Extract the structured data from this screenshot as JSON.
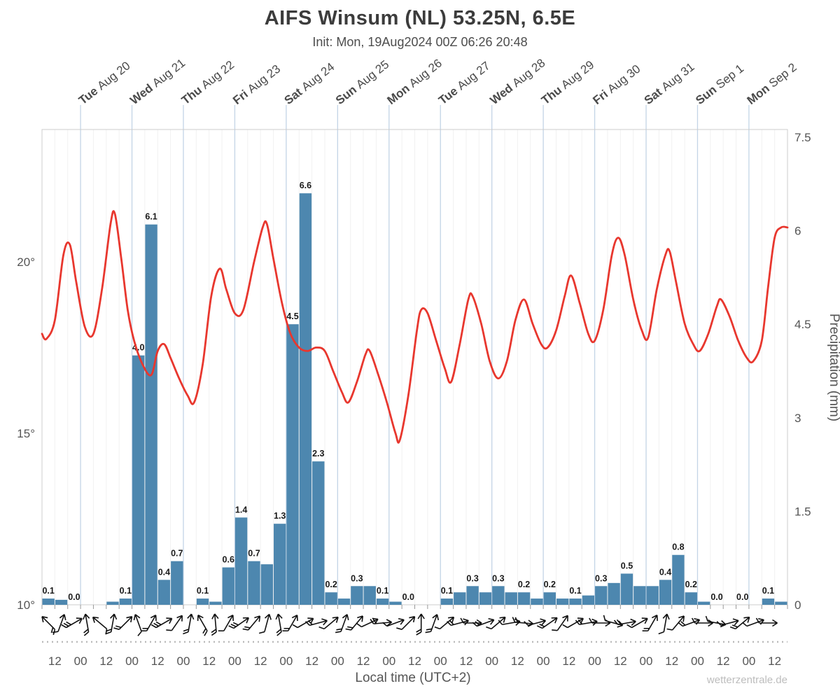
{
  "watermark": "wetterzentrale.de",
  "chart_data": {
    "type": "meteogram (line + bar + wind barbs)",
    "title": "AIFS Winsum (NL) 53.25N, 6.5E",
    "subtitle": "Init: Mon, 19Aug2024 00Z 06:26 20:48",
    "y_left": {
      "label": "Temperature",
      "unit": "°C",
      "ticks": [
        {
          "v": 20,
          "label": "20°"
        },
        {
          "v": 15,
          "label": "15°"
        },
        {
          "v": 10,
          "label": "10°"
        }
      ],
      "range": [
        10,
        23.9
      ]
    },
    "y_right": {
      "label": "Precipitation (mm)",
      "unit": "mm",
      "ticks": [
        "0",
        "1.5",
        "3",
        "4.5",
        "6",
        "7.5"
      ],
      "tick_values": [
        0,
        1.5,
        3,
        4.5,
        6,
        7.5
      ],
      "range": [
        0,
        7.5
      ]
    },
    "x": {
      "label": "Local time (UTC+2)",
      "start": "Mon Aug 19 06:00 local",
      "hours_total": 348,
      "day_marks": [
        {
          "t": 18,
          "day": "Tue",
          "date": "Aug 20"
        },
        {
          "t": 42,
          "day": "Wed",
          "date": "Aug 21"
        },
        {
          "t": 66,
          "day": "Thu",
          "date": "Aug 22"
        },
        {
          "t": 90,
          "day": "Fri",
          "date": "Aug 23"
        },
        {
          "t": 114,
          "day": "Sat",
          "date": "Aug 24"
        },
        {
          "t": 138,
          "day": "Sun",
          "date": "Aug 25"
        },
        {
          "t": 162,
          "day": "Mon",
          "date": "Aug 26"
        },
        {
          "t": 186,
          "day": "Tue",
          "date": "Aug 27"
        },
        {
          "t": 210,
          "day": "Wed",
          "date": "Aug 28"
        },
        {
          "t": 234,
          "day": "Thu",
          "date": "Aug 29"
        },
        {
          "t": 258,
          "day": "Fri",
          "date": "Aug 30"
        },
        {
          "t": 282,
          "day": "Sat",
          "date": "Aug 31"
        },
        {
          "t": 306,
          "day": "Sun",
          "date": "Sep 1"
        },
        {
          "t": 330,
          "day": "Mon",
          "date": "Sep 2"
        }
      ],
      "hour_ticks": [
        {
          "t": 6,
          "label": "12"
        },
        {
          "t": 18,
          "label": "00"
        },
        {
          "t": 30,
          "label": "12"
        },
        {
          "t": 42,
          "label": "00"
        },
        {
          "t": 54,
          "label": "12"
        },
        {
          "t": 66,
          "label": "00"
        },
        {
          "t": 78,
          "label": "12"
        },
        {
          "t": 90,
          "label": "00"
        },
        {
          "t": 102,
          "label": "12"
        },
        {
          "t": 114,
          "label": "00"
        },
        {
          "t": 126,
          "label": "12"
        },
        {
          "t": 138,
          "label": "00"
        },
        {
          "t": 150,
          "label": "12"
        },
        {
          "t": 162,
          "label": "00"
        },
        {
          "t": 174,
          "label": "12"
        },
        {
          "t": 186,
          "label": "00"
        },
        {
          "t": 198,
          "label": "12"
        },
        {
          "t": 210,
          "label": "00"
        },
        {
          "t": 222,
          "label": "12"
        },
        {
          "t": 234,
          "label": "00"
        },
        {
          "t": 246,
          "label": "12"
        },
        {
          "t": 258,
          "label": "00"
        },
        {
          "t": 270,
          "label": "12"
        },
        {
          "t": 282,
          "label": "00"
        },
        {
          "t": 294,
          "label": "12"
        },
        {
          "t": 306,
          "label": "00"
        },
        {
          "t": 318,
          "label": "12"
        },
        {
          "t": 330,
          "label": "00"
        },
        {
          "t": 342,
          "label": "12"
        }
      ]
    },
    "temperature": {
      "name": "2m temperature",
      "color": "#e8372e",
      "unit": "°C",
      "points": [
        [
          0,
          17.9
        ],
        [
          2,
          17.75
        ],
        [
          6,
          18.3
        ],
        [
          10,
          20.2
        ],
        [
          13,
          20.5
        ],
        [
          16,
          19.4
        ],
        [
          20,
          18.1
        ],
        [
          24,
          17.9
        ],
        [
          28,
          19.2
        ],
        [
          32,
          21.1
        ],
        [
          34,
          21.4
        ],
        [
          37,
          20.1
        ],
        [
          40,
          18.6
        ],
        [
          43,
          17.7
        ],
        [
          47,
          17.0
        ],
        [
          51,
          16.7
        ],
        [
          54,
          17.4
        ],
        [
          57,
          17.6
        ],
        [
          60,
          17.2
        ],
        [
          64,
          16.6
        ],
        [
          68,
          16.1
        ],
        [
          71,
          15.9
        ],
        [
          75,
          17.0
        ],
        [
          79,
          19.0
        ],
        [
          83,
          19.8
        ],
        [
          86,
          19.2
        ],
        [
          90,
          18.5
        ],
        [
          94,
          18.6
        ],
        [
          99,
          20.0
        ],
        [
          103,
          21.0
        ],
        [
          105,
          21.1
        ],
        [
          108,
          20.1
        ],
        [
          112,
          18.8
        ],
        [
          116,
          17.9
        ],
        [
          120,
          17.5
        ],
        [
          124,
          17.4
        ],
        [
          128,
          17.5
        ],
        [
          132,
          17.4
        ],
        [
          136,
          16.8
        ],
        [
          140,
          16.2
        ],
        [
          143,
          15.9
        ],
        [
          147,
          16.5
        ],
        [
          151,
          17.3
        ],
        [
          153,
          17.4
        ],
        [
          157,
          16.7
        ],
        [
          161,
          15.9
        ],
        [
          165,
          15.0
        ],
        [
          167,
          14.8
        ],
        [
          171,
          16.1
        ],
        [
          175,
          18.0
        ],
        [
          177,
          18.6
        ],
        [
          180,
          18.5
        ],
        [
          184,
          17.7
        ],
        [
          188,
          16.9
        ],
        [
          191,
          16.5
        ],
        [
          195,
          17.6
        ],
        [
          199,
          18.9
        ],
        [
          201,
          19.0
        ],
        [
          205,
          18.2
        ],
        [
          209,
          17.1
        ],
        [
          213,
          16.6
        ],
        [
          217,
          17.1
        ],
        [
          221,
          18.3
        ],
        [
          225,
          18.9
        ],
        [
          229,
          18.2
        ],
        [
          233,
          17.6
        ],
        [
          236,
          17.5
        ],
        [
          240,
          18.0
        ],
        [
          244,
          19.0
        ],
        [
          247,
          19.6
        ],
        [
          251,
          18.8
        ],
        [
          255,
          17.9
        ],
        [
          258,
          17.7
        ],
        [
          262,
          18.6
        ],
        [
          266,
          20.2
        ],
        [
          269,
          20.7
        ],
        [
          272,
          20.2
        ],
        [
          276,
          18.9
        ],
        [
          280,
          18.0
        ],
        [
          283,
          17.8
        ],
        [
          287,
          19.2
        ],
        [
          291,
          20.2
        ],
        [
          293,
          20.3
        ],
        [
          296,
          19.4
        ],
        [
          300,
          18.2
        ],
        [
          304,
          17.6
        ],
        [
          307,
          17.4
        ],
        [
          311,
          17.9
        ],
        [
          315,
          18.7
        ],
        [
          317,
          18.9
        ],
        [
          321,
          18.4
        ],
        [
          325,
          17.7
        ],
        [
          329,
          17.2
        ],
        [
          332,
          17.1
        ],
        [
          336,
          17.7
        ],
        [
          339,
          19.3
        ],
        [
          342,
          20.7
        ],
        [
          345,
          21.0
        ],
        [
          348,
          21.0
        ]
      ]
    },
    "precipitation": {
      "name": "6h precipitation",
      "color": "#4d87af",
      "unit": "mm",
      "bin_hours": 6,
      "start_t": 0,
      "values": [
        0.1,
        0.08,
        0,
        0,
        0,
        0.05,
        0.1,
        4.0,
        6.1,
        0.4,
        0.7,
        0,
        0.1,
        0.05,
        0.6,
        1.4,
        0.7,
        0.65,
        1.3,
        4.5,
        6.6,
        2.3,
        0.2,
        0.1,
        0.3,
        0.3,
        0.1,
        0.05,
        0,
        0,
        0,
        0.1,
        0.2,
        0.3,
        0.2,
        0.3,
        0.2,
        0.2,
        0.1,
        0.2,
        0.1,
        0.1,
        0.15,
        0.3,
        0.35,
        0.5,
        0.3,
        0.3,
        0.4,
        0.8,
        0.2,
        0.05,
        0,
        0,
        0,
        0,
        0.1,
        0.05
      ],
      "labels": [
        "0.1",
        "",
        "0.0",
        "",
        "",
        "",
        "0.1",
        "4.0",
        "6.1",
        "0.4",
        "0.7",
        "",
        "0.1",
        "",
        "0.6",
        "1.4",
        "0.7",
        "",
        "1.3",
        "4.5",
        "6.6",
        "2.3",
        "0.2",
        "",
        "0.3",
        "",
        "0.1",
        "",
        "0.0",
        "",
        "",
        "0.1",
        "",
        "0.3",
        "",
        "0.3",
        "",
        "0.2",
        "",
        "0.2",
        "",
        "0.1",
        "",
        "0.3",
        "",
        "0.5",
        "",
        "",
        "0.4",
        "0.8",
        "0.2",
        "",
        "0.0",
        "",
        "0.0",
        "",
        "0.1",
        ""
      ]
    },
    "wind": {
      "name": "wind barbs",
      "color": "#111111",
      "dirs_deg": [
        -135,
        -70,
        -30,
        -100,
        -140,
        -80,
        -45,
        -110,
        -60,
        -30,
        -55,
        -80,
        -120,
        -95,
        -60,
        -35,
        -50,
        -75,
        -100,
        -60,
        -30,
        -15,
        -40,
        -70,
        -50,
        -25,
        -5,
        -20,
        -45,
        -90,
        -70,
        -40,
        -15,
        0,
        -20,
        -40,
        -10,
        5,
        -15,
        -35,
        -55,
        -30,
        -10,
        0,
        15,
        -10,
        -30,
        -60,
        -80,
        -50,
        -20,
        0,
        10,
        -15,
        -40,
        -20,
        0
      ],
      "feathers": [
        2,
        1,
        3,
        2,
        1,
        2,
        2,
        1,
        2,
        3,
        1,
        2,
        2,
        2,
        1,
        3,
        2,
        1,
        2,
        2,
        1,
        2,
        1,
        2,
        2,
        1,
        2,
        1,
        1,
        2,
        2,
        1,
        2,
        1,
        2,
        1,
        1,
        2,
        1,
        2,
        1,
        1,
        2,
        1,
        1,
        2,
        1,
        2,
        1,
        1,
        2,
        1,
        1,
        1,
        2,
        1,
        1
      ]
    }
  }
}
